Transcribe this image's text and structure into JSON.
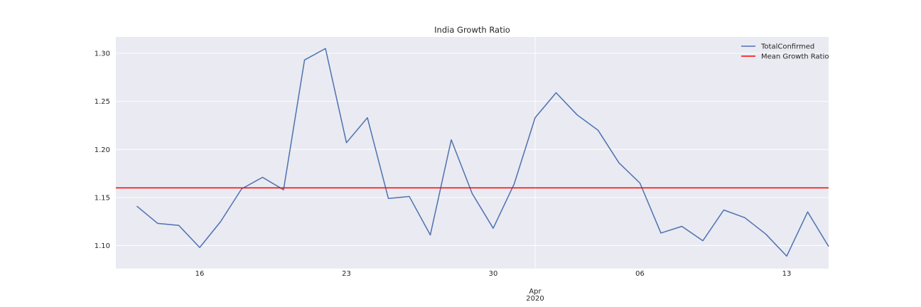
{
  "chart_data": {
    "type": "line",
    "title": "India Growth Ratio",
    "xlabel": "",
    "ylabel": "",
    "x": [
      "2020-03-13",
      "2020-03-14",
      "2020-03-15",
      "2020-03-16",
      "2020-03-17",
      "2020-03-18",
      "2020-03-19",
      "2020-03-20",
      "2020-03-21",
      "2020-03-22",
      "2020-03-23",
      "2020-03-24",
      "2020-03-25",
      "2020-03-26",
      "2020-03-27",
      "2020-03-28",
      "2020-03-29",
      "2020-03-30",
      "2020-03-31",
      "2020-04-01",
      "2020-04-02",
      "2020-04-03",
      "2020-04-04",
      "2020-04-05",
      "2020-04-06",
      "2020-04-07",
      "2020-04-08",
      "2020-04-09",
      "2020-04-10",
      "2020-04-11",
      "2020-04-12",
      "2020-04-13",
      "2020-04-14",
      "2020-04-15"
    ],
    "xlim": [
      "2020-03-12",
      "2020-04-15"
    ],
    "ylim": [
      1.076,
      1.317
    ],
    "series": [
      {
        "name": "TotalConfirmed",
        "color": "#4c72b0",
        "values": [
          1.141,
          1.123,
          1.121,
          1.098,
          1.125,
          1.159,
          1.171,
          1.158,
          1.293,
          1.305,
          1.207,
          1.233,
          1.149,
          1.151,
          1.111,
          1.21,
          1.154,
          1.118,
          1.164,
          1.233,
          1.259,
          1.236,
          1.22,
          1.186,
          1.165,
          1.113,
          1.12,
          1.105,
          1.137,
          1.129,
          1.112,
          1.089,
          1.135,
          1.099
        ]
      }
    ],
    "hlines": [
      {
        "name": "Mean Growth Ratio",
        "value": 1.16,
        "color": "#ff0000"
      }
    ],
    "x_ticks": [
      {
        "date": "2020-03-16",
        "label": "16"
      },
      {
        "date": "2020-03-23",
        "label": "23"
      },
      {
        "date": "2020-03-30",
        "label": "30"
      },
      {
        "date": "2020-04-06",
        "label": "06"
      },
      {
        "date": "2020-04-13",
        "label": "13"
      }
    ],
    "x_major_tick": {
      "date": "2020-04-01",
      "label_line1": "Apr",
      "label_line2": "2020"
    },
    "y_ticks": [
      1.1,
      1.15,
      1.2,
      1.25,
      1.3
    ],
    "y_tick_labels": [
      "1.10",
      "1.15",
      "1.20",
      "1.25",
      "1.30"
    ],
    "grid": true,
    "legend": {
      "placement": "top-right",
      "entries": [
        {
          "label": "TotalConfirmed",
          "color": "#4c72b0"
        },
        {
          "label": "Mean Growth Ratio",
          "color": "#ff0000"
        }
      ]
    },
    "style": {
      "background": "#eaeaf2",
      "grid_color": "#ffffff"
    }
  }
}
